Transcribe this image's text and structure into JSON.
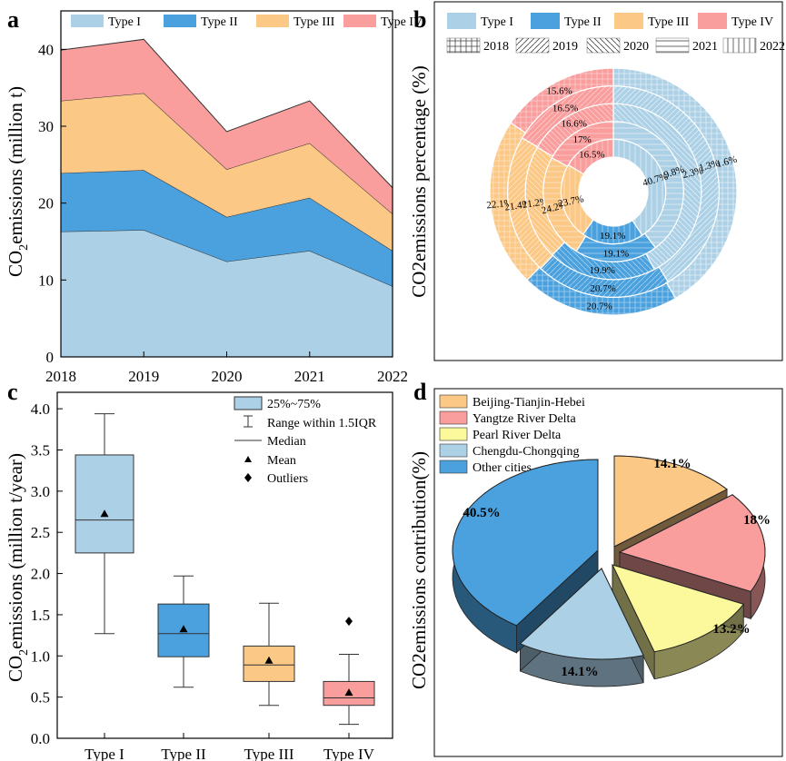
{
  "panels": {
    "a": "a",
    "b": "b",
    "c": "c",
    "d": "d"
  },
  "colors": {
    "type1": "#acd0e6",
    "type2": "#4aa1de",
    "type3": "#fcc886",
    "type4": "#f99d9d",
    "yellow": "#fbf99b"
  },
  "chart_data": [
    {
      "id": "a",
      "type": "area",
      "stacked": true,
      "x": [
        2018,
        2019,
        2020,
        2021,
        2022
      ],
      "series": [
        {
          "name": "Type I",
          "values": [
            16.3,
            16.5,
            12.4,
            13.8,
            9.2
          ]
        },
        {
          "name": "Type II",
          "values": [
            7.6,
            7.8,
            5.8,
            6.9,
            4.6
          ]
        },
        {
          "name": "Type III",
          "values": [
            9.4,
            10.0,
            6.2,
            7.1,
            4.8
          ]
        },
        {
          "name": "Type IV",
          "values": [
            6.6,
            7.0,
            4.9,
            5.5,
            3.4
          ]
        }
      ],
      "xlabel": "",
      "ylabel_main": "CO",
      "ylabel_sub": "2",
      "ylabel_rest": "emissions (million t)",
      "ylim": [
        0,
        45
      ],
      "yticks": [
        0,
        10,
        20,
        30,
        40
      ]
    },
    {
      "id": "b",
      "type": "pie",
      "subtype": "multi-ring donut",
      "ylabel": "CO2emissions percentage (%)",
      "years": [
        "2018",
        "2019",
        "2020",
        "2021",
        "2022"
      ],
      "categories": [
        "Type I",
        "Type II",
        "Type III",
        "Type IV"
      ],
      "rings": [
        {
          "year": "2018",
          "values": [
            41.6,
            20.7,
            22.1,
            15.6
          ]
        },
        {
          "year": "2019",
          "values": [
            41.3,
            20.7,
            21.4,
            16.5
          ]
        },
        {
          "year": "2020",
          "values": [
            42.3,
            19.9,
            21.2,
            16.6
          ]
        },
        {
          "year": "2021",
          "values": [
            39.8,
            19.1,
            24.2,
            17.0
          ]
        },
        {
          "year": "2022",
          "values": [
            40.7,
            19.1,
            23.7,
            16.5
          ]
        }
      ],
      "labels": [
        {
          "cat": 0,
          "text": [
            "41.6%",
            "41.3%",
            "42.3%",
            "39.8%",
            "40.7%"
          ]
        },
        {
          "cat": 1,
          "text": [
            "20.7%",
            "20.7%",
            "19.9%",
            "19.1%",
            "19.1%"
          ]
        },
        {
          "cat": 2,
          "text": [
            "22.1%",
            "21.4%",
            "21.2%",
            "24.2%",
            "23.7%"
          ]
        },
        {
          "cat": 3,
          "text": [
            "15.6%",
            "16.5%",
            "16.6%",
            "17%",
            "16.5%"
          ]
        }
      ]
    },
    {
      "id": "c",
      "type": "box",
      "categories": [
        "Type I",
        "Type II",
        "Type III",
        "Type IV"
      ],
      "boxes": [
        {
          "min": 1.27,
          "q1": 2.25,
          "median": 2.65,
          "q3": 3.44,
          "max": 3.94,
          "mean": 2.72,
          "outliers": []
        },
        {
          "min": 0.62,
          "q1": 0.99,
          "median": 1.27,
          "q3": 1.63,
          "max": 1.97,
          "mean": 1.32,
          "outliers": []
        },
        {
          "min": 0.4,
          "q1": 0.69,
          "median": 0.89,
          "q3": 1.12,
          "max": 1.64,
          "mean": 0.94,
          "outliers": []
        },
        {
          "min": 0.17,
          "q1": 0.4,
          "median": 0.49,
          "q3": 0.69,
          "max": 1.02,
          "mean": 0.55,
          "outliers": [
            1.42
          ]
        }
      ],
      "ylabel_main": "CO",
      "ylabel_sub": "2",
      "ylabel_rest": "emissions (million t/year)",
      "ylim": [
        0,
        4.2
      ],
      "yticks": [
        "0.0",
        "0.5",
        "1.0",
        "1.5",
        "2.0",
        "2.5",
        "3.0",
        "3.5",
        "4.0"
      ],
      "legend": [
        "25%~75%",
        "Range within 1.5IQR",
        "Median",
        "Mean",
        "Outliers"
      ]
    },
    {
      "id": "d",
      "type": "pie",
      "subtype": "3d exploded",
      "ylabel": "CO2emissions contribution(%)",
      "categories": [
        "Beijing-Tianjin-Hebei",
        "Yangtze River Delta",
        "Pearl River Delta",
        "Chengdu-Chongqing",
        "Other cities"
      ],
      "values": [
        14.1,
        18.0,
        13.2,
        14.1,
        40.5
      ],
      "labels": [
        "14.1%",
        "18%",
        "13.2%",
        "14.1%",
        "40.5%"
      ]
    }
  ]
}
